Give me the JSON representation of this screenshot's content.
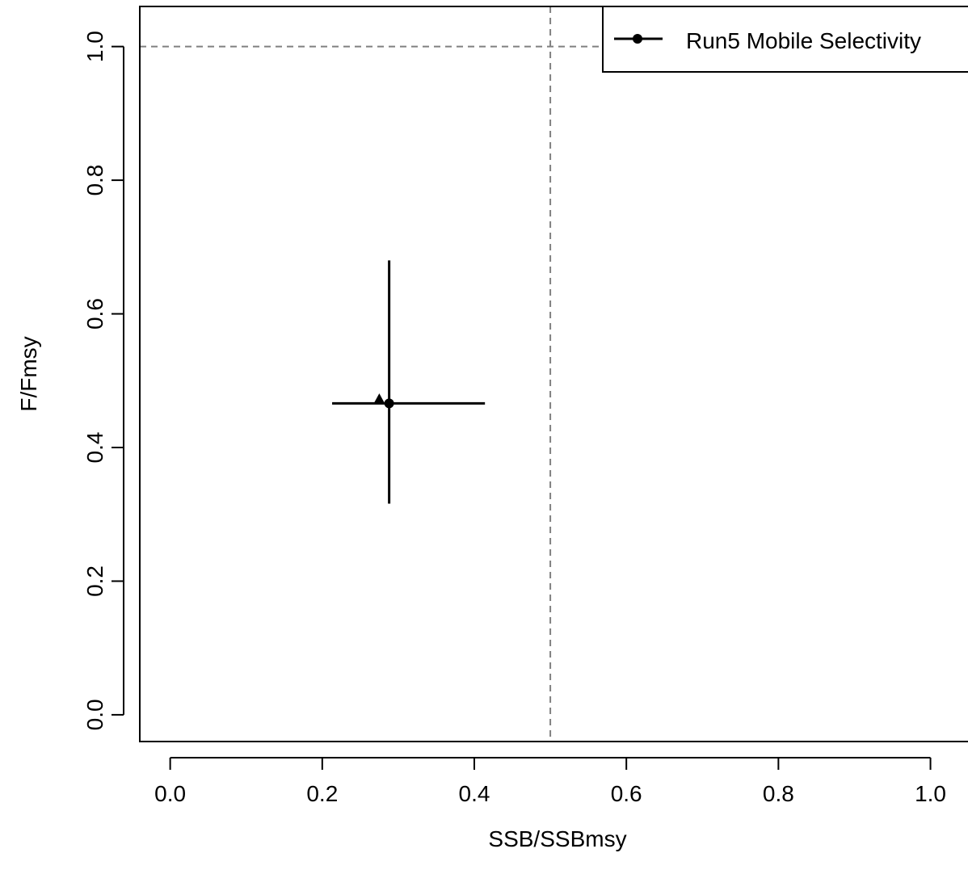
{
  "chart_data": {
    "type": "scatter",
    "xlabel": "SSB/SSBmsy",
    "ylabel": "F/Fmsy",
    "xlim": [
      -0.04,
      1.06
    ],
    "ylim": [
      -0.04,
      1.06
    ],
    "x_ticks": [
      {
        "value": 0.0,
        "label": "0.0"
      },
      {
        "value": 0.2,
        "label": "0.2"
      },
      {
        "value": 0.4,
        "label": "0.4"
      },
      {
        "value": 0.6,
        "label": "0.6"
      },
      {
        "value": 0.8,
        "label": "0.8"
      },
      {
        "value": 1.0,
        "label": "1.0"
      }
    ],
    "y_ticks": [
      {
        "value": 0.0,
        "label": "0.0"
      },
      {
        "value": 0.2,
        "label": "0.2"
      },
      {
        "value": 0.4,
        "label": "0.4"
      },
      {
        "value": 0.6,
        "label": "0.6"
      },
      {
        "value": 0.8,
        "label": "0.8"
      },
      {
        "value": 1.0,
        "label": "1.0"
      }
    ],
    "reference_lines": {
      "vertical_x": 0.5,
      "horizontal_y": 1.0,
      "style": "dashed",
      "color": "#808080"
    },
    "grid": false,
    "legend": {
      "position": "top-right",
      "entries": [
        {
          "label": "Run5 Mobile Selectivity",
          "marker": "circle",
          "line": true
        }
      ]
    },
    "series": [
      {
        "name": "Run5 Mobile Selectivity",
        "color": "#000000",
        "points": [
          {
            "x": 0.288,
            "y": 0.466,
            "marker": "circle",
            "x_interval": [
              0.213,
              0.414
            ],
            "y_interval": [
              0.316,
              0.68
            ]
          },
          {
            "x": 0.275,
            "y": 0.473,
            "marker": "triangle"
          }
        ]
      }
    ]
  }
}
